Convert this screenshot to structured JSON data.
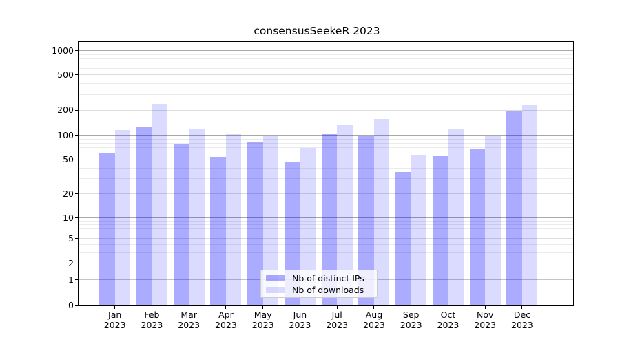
{
  "chart_data": {
    "type": "bar",
    "title": "consensusSeekeR 2023",
    "categories": [
      "Jan 2023",
      "Feb 2023",
      "Mar 2023",
      "Apr 2023",
      "May 2023",
      "Jun 2023",
      "Jul 2023",
      "Aug 2023",
      "Sep 2023",
      "Oct 2023",
      "Nov 2023",
      "Dec 2023"
    ],
    "series": [
      {
        "name": "Nb of distinct IPs",
        "color_hex": "#0000ff",
        "alpha": 0.33,
        "blended_hex": "#ababff",
        "values": [
          60,
          126,
          78,
          54,
          84,
          47,
          103,
          100,
          36,
          55,
          69,
          197
        ]
      },
      {
        "name": "Nb of downloads",
        "color_hex": "#0000ff",
        "alpha": 0.14,
        "blended_hex": "#dbdbff",
        "values": [
          115,
          234,
          117,
          103,
          100,
          70,
          135,
          156,
          56,
          119,
          98,
          230
        ]
      }
    ],
    "xlabel": "",
    "ylabel": "",
    "yscale": "symlog",
    "ylim": [
      0,
      1000
    ],
    "yticks": [
      0,
      1,
      2,
      5,
      10,
      20,
      50,
      100,
      200,
      500,
      1000
    ],
    "grid": "horizontal major + log minor gridlines",
    "legend_position": "bottom-center"
  }
}
